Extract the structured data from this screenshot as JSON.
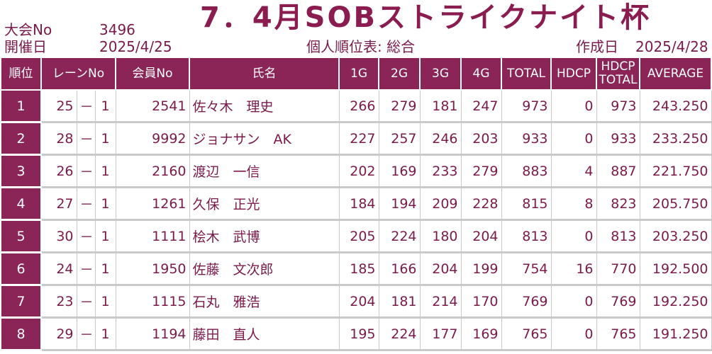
{
  "header": {
    "tournament_no_label": "大会No",
    "tournament_no": "3496",
    "date_label": "開催日",
    "date": "2025/4/25",
    "title": "7．4月SOBストライクナイト杯",
    "subtitle": "個人順位表: 総合",
    "created_label": "作成日",
    "created_date": "2025/4/28"
  },
  "table": {
    "columns": {
      "rank": "順位",
      "lane": "レーンNo",
      "member": "会員No",
      "name": "氏名",
      "g1": "1G",
      "g2": "2G",
      "g3": "3G",
      "g4": "4G",
      "total": "TOTAL",
      "hdcp": "HDCP",
      "hdcp_total_1": "HDCP",
      "hdcp_total_2": "TOTAL",
      "average": "AVERAGE"
    },
    "rows": [
      {
        "rank": "1",
        "lane": "25",
        "sep": "－",
        "lane_sub": "1",
        "member": "2541",
        "name": "佐々木　理史",
        "g1": "266",
        "g2": "279",
        "g3": "181",
        "g4": "247",
        "total": "973",
        "hdcp": "0",
        "hdcp_total": "973",
        "average": "243.250"
      },
      {
        "rank": "2",
        "lane": "28",
        "sep": "－",
        "lane_sub": "1",
        "member": "9992",
        "name": "ジョナサン　AK",
        "g1": "227",
        "g2": "257",
        "g3": "246",
        "g4": "203",
        "total": "933",
        "hdcp": "0",
        "hdcp_total": "933",
        "average": "233.250"
      },
      {
        "rank": "3",
        "lane": "26",
        "sep": "－",
        "lane_sub": "1",
        "member": "2160",
        "name": "渡辺　一信",
        "g1": "202",
        "g2": "169",
        "g3": "233",
        "g4": "279",
        "total": "883",
        "hdcp": "4",
        "hdcp_total": "887",
        "average": "221.750"
      },
      {
        "rank": "4",
        "lane": "27",
        "sep": "－",
        "lane_sub": "1",
        "member": "1261",
        "name": "久保　正光",
        "g1": "184",
        "g2": "194",
        "g3": "209",
        "g4": "228",
        "total": "815",
        "hdcp": "8",
        "hdcp_total": "823",
        "average": "205.750"
      },
      {
        "rank": "5",
        "lane": "30",
        "sep": "－",
        "lane_sub": "1",
        "member": "1111",
        "name": "桧木　武博",
        "g1": "205",
        "g2": "224",
        "g3": "180",
        "g4": "204",
        "total": "813",
        "hdcp": "0",
        "hdcp_total": "813",
        "average": "203.250"
      },
      {
        "rank": "6",
        "lane": "24",
        "sep": "－",
        "lane_sub": "1",
        "member": "1950",
        "name": "佐藤　文次郎",
        "g1": "185",
        "g2": "166",
        "g3": "204",
        "g4": "199",
        "total": "754",
        "hdcp": "16",
        "hdcp_total": "770",
        "average": "192.500"
      },
      {
        "rank": "7",
        "lane": "23",
        "sep": "－",
        "lane_sub": "1",
        "member": "1115",
        "name": "石丸　雅浩",
        "g1": "204",
        "g2": "181",
        "g3": "214",
        "g4": "170",
        "total": "769",
        "hdcp": "0",
        "hdcp_total": "769",
        "average": "192.250"
      },
      {
        "rank": "8",
        "lane": "29",
        "sep": "－",
        "lane_sub": "1",
        "member": "1194",
        "name": "藤田　直人",
        "g1": "195",
        "g2": "224",
        "g3": "177",
        "g4": "169",
        "total": "765",
        "hdcp": "0",
        "hdcp_total": "765",
        "average": "191.250"
      }
    ]
  },
  "colors": {
    "accent": "#8b2558",
    "text": "#7a1a4a",
    "grid": "#c9c9c9"
  }
}
